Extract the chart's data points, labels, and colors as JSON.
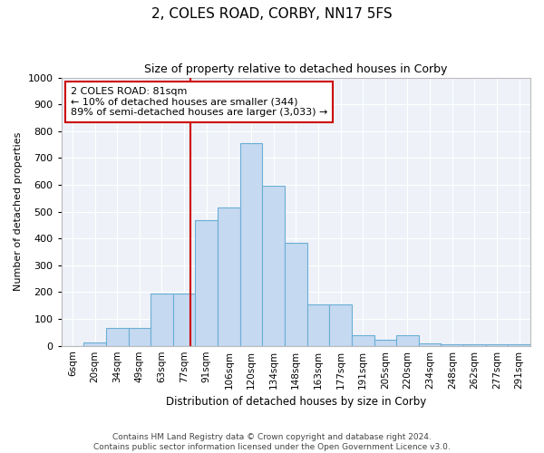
{
  "title_line1": "2, COLES ROAD, CORBY, NN17 5FS",
  "title_line2": "Size of property relative to detached houses in Corby",
  "xlabel": "Distribution of detached houses by size in Corby",
  "ylabel": "Number of detached properties",
  "categories": [
    "6sqm",
    "20sqm",
    "34sqm",
    "49sqm",
    "63sqm",
    "77sqm",
    "91sqm",
    "106sqm",
    "120sqm",
    "134sqm",
    "148sqm",
    "163sqm",
    "177sqm",
    "191sqm",
    "205sqm",
    "220sqm",
    "234sqm",
    "248sqm",
    "262sqm",
    "277sqm",
    "291sqm"
  ],
  "bar_heights": [
    0,
    11,
    65,
    65,
    195,
    195,
    470,
    515,
    755,
    595,
    385,
    155,
    155,
    38,
    22,
    40,
    10,
    5,
    5,
    5,
    5
  ],
  "bar_color": "#c5d9f0",
  "bar_edge_color": "#6baed6",
  "bg_color": "#eef2f8",
  "grid_color": "#ffffff",
  "ylim": [
    0,
    1000
  ],
  "yticks": [
    0,
    100,
    200,
    300,
    400,
    500,
    600,
    700,
    800,
    900,
    1000
  ],
  "vline_x_index": 5.29,
  "annotation_text": "2 COLES ROAD: 81sqm\n← 10% of detached houses are smaller (344)\n89% of semi-detached houses are larger (3,033) →",
  "annotation_box_color": "#ffffff",
  "annotation_border_color": "#cc0000",
  "vline_color": "#cc0000",
  "footer_line1": "Contains HM Land Registry data © Crown copyright and database right 2024.",
  "footer_line2": "Contains public sector information licensed under the Open Government Licence v3.0."
}
